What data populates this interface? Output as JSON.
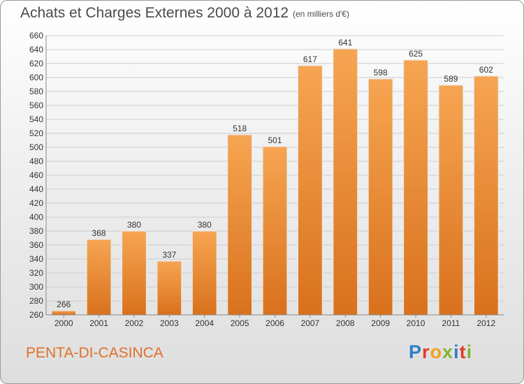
{
  "header": {
    "title": "Achats et Charges Externes 2000 à 2012",
    "subtitle": "(en milliers d'€)"
  },
  "footer": {
    "town": "PENTA-DI-CASINCA",
    "logo_text": "Proxiti",
    "logo_colors": [
      "#2c7fc8",
      "#e23b2a",
      "#f2a11c",
      "#7cb833",
      "#2c7fc8",
      "#e23b2a",
      "#7cb833"
    ]
  },
  "colors": {
    "bar_light": "#f6a552",
    "bar_dark": "#d9711c",
    "grid": "#cccccc",
    "axis_text": "#333333"
  },
  "chart_data": {
    "type": "bar",
    "title": "Achats et Charges Externes 2000 à 2012",
    "subtitle": "(en milliers d'€)",
    "categories": [
      "2000",
      "2001",
      "2002",
      "2003",
      "2004",
      "2005",
      "2006",
      "2007",
      "2008",
      "2009",
      "2010",
      "2011",
      "2012"
    ],
    "values": [
      266,
      368,
      380,
      337,
      380,
      518,
      501,
      617,
      641,
      598,
      625,
      589,
      602
    ],
    "ylim": [
      260,
      660
    ],
    "yticks": [
      260,
      280,
      300,
      320,
      340,
      360,
      380,
      400,
      420,
      440,
      460,
      480,
      500,
      520,
      540,
      560,
      580,
      600,
      620,
      640,
      660
    ],
    "grid": true,
    "xlabel": "",
    "ylabel": ""
  }
}
